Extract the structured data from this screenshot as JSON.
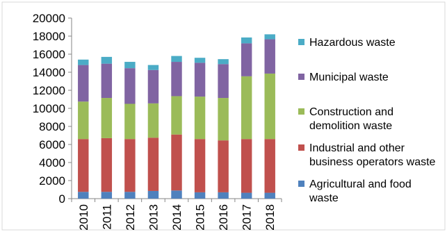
{
  "chart_data": {
    "type": "bar",
    "stacked": true,
    "categories": [
      "2010",
      "2011",
      "2012",
      "2013",
      "2014",
      "2015",
      "2016",
      "2017",
      "2018"
    ],
    "series": [
      {
        "name": "Agricultural and food waste",
        "color": "#4f81bd",
        "values": [
          750,
          750,
          750,
          850,
          900,
          700,
          700,
          650,
          650
        ]
      },
      {
        "name": "Industrial and other business operators waste",
        "color": "#c0504d",
        "values": [
          5850,
          5950,
          5850,
          5900,
          6200,
          5900,
          5750,
          5950,
          5950
        ]
      },
      {
        "name": "Construction and demolition waste",
        "color": "#9bbb59",
        "values": [
          4150,
          4450,
          3900,
          3800,
          4250,
          4700,
          4700,
          6950,
          7250
        ]
      },
      {
        "name": "Municipal waste",
        "color": "#8064a2",
        "values": [
          4050,
          3800,
          3950,
          3700,
          3800,
          3750,
          3750,
          3650,
          3800
        ]
      },
      {
        "name": "Hazardous waste",
        "color": "#4bacc6",
        "values": [
          600,
          750,
          700,
          550,
          650,
          550,
          550,
          650,
          550
        ]
      }
    ],
    "legend_order": [
      "Hazardous waste",
      "Municipal waste",
      "Construction and demolition waste",
      "Industrial and other business operators waste",
      "Agricultural and food waste"
    ],
    "legend_lines": [
      [
        "Hazardous waste"
      ],
      [
        "Municipal waste"
      ],
      [
        "Construction and",
        "demolition waste"
      ],
      [
        "Industrial and other",
        "business operators waste"
      ],
      [
        "Agricultural and food",
        "waste"
      ]
    ],
    "ylim": [
      0,
      20000
    ],
    "yticks": [
      0,
      2000,
      4000,
      6000,
      8000,
      10000,
      12000,
      14000,
      16000,
      18000,
      20000
    ],
    "grid": false,
    "legend_position": "right"
  }
}
